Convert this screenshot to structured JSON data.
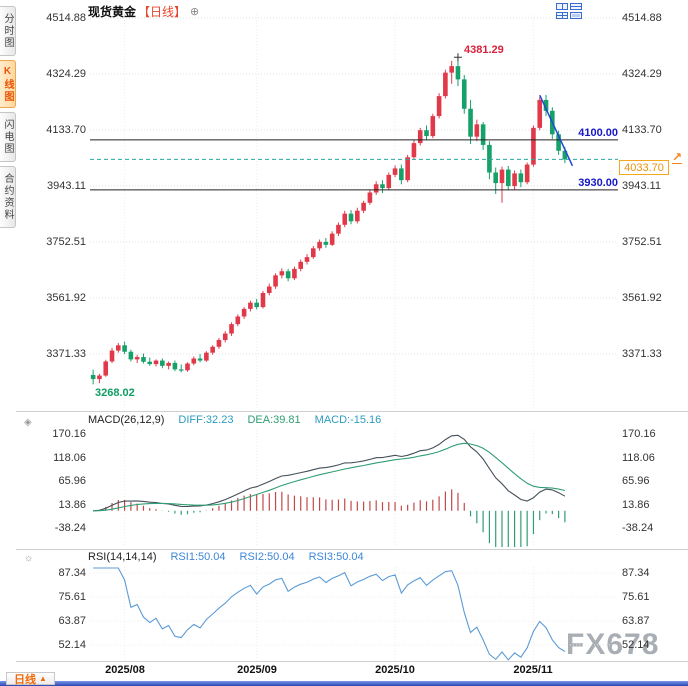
{
  "sidebar": {
    "items": [
      {
        "label": "分时图",
        "active": false
      },
      {
        "label": "K线图",
        "active": true
      },
      {
        "label": "闪电图",
        "active": false
      },
      {
        "label": "合约资料",
        "active": false
      }
    ]
  },
  "header": {
    "title": "现货黄金",
    "period_tag": "【日线】"
  },
  "icons": {
    "add": "⊕",
    "macd_settings": "◈",
    "rsi_settings": "☼",
    "jump_to_latest": "↗",
    "dropdown_arrow": "▲"
  },
  "footer": {
    "period_label": "日线"
  },
  "watermark": "FX678",
  "chart_data": [
    {
      "type": "candlestick",
      "title": "现货黄金【日线】",
      "y_ticks": [
        "4514.88",
        "4324.29",
        "4133.70",
        "3943.11",
        "3752.51",
        "3561.92",
        "3371.33"
      ],
      "x_labels": [
        {
          "label": "2025/08",
          "index": 5
        },
        {
          "label": "2025/09",
          "index": 26
        },
        {
          "label": "2025/10",
          "index": 48
        },
        {
          "label": "2025/11",
          "index": 70
        }
      ],
      "colors": {
        "up": "#e0394a",
        "down": "#16a06a",
        "grid": "#e2e2e2",
        "level_line": "#222222",
        "level_label": "#1518c8",
        "current_line": "#2aa7a0",
        "current_tag": "#f5a61f",
        "trendline": "#2247d0"
      },
      "annotations": {
        "peak_label": {
          "text": "4381.29",
          "index": 58,
          "price": 4381.29
        },
        "low_label": {
          "text": "3268.02",
          "index": 0,
          "price": 3268.02
        },
        "hlines": [
          {
            "text": "4100.00",
            "price": 4100.0
          },
          {
            "text": "3930.00",
            "price": 3930.0
          }
        ],
        "current": {
          "text": "4033.70",
          "price": 4033.7
        },
        "trendline": {
          "index1": 71,
          "price1": 4252,
          "index2": 76.2,
          "price2": 4012
        }
      },
      "candles": [
        [
          3300,
          3318,
          3268.02,
          3286
        ],
        [
          3286,
          3304,
          3272,
          3298
        ],
        [
          3298,
          3352,
          3294,
          3346
        ],
        [
          3346,
          3392,
          3341,
          3383
        ],
        [
          3383,
          3409,
          3376,
          3401
        ],
        [
          3401,
          3413,
          3371,
          3379
        ],
        [
          3379,
          3386,
          3346,
          3353
        ],
        [
          3353,
          3369,
          3341,
          3361
        ],
        [
          3361,
          3373,
          3339,
          3345
        ],
        [
          3345,
          3359,
          3331,
          3337
        ],
        [
          3337,
          3353,
          3329,
          3349
        ],
        [
          3349,
          3356,
          3323,
          3331
        ],
        [
          3331,
          3346,
          3319,
          3341
        ],
        [
          3341,
          3349,
          3313,
          3319
        ],
        [
          3319,
          3336,
          3309,
          3316
        ],
        [
          3316,
          3343,
          3311,
          3339
        ],
        [
          3339,
          3363,
          3333,
          3356
        ],
        [
          3356,
          3371,
          3343,
          3349
        ],
        [
          3349,
          3381,
          3345,
          3376
        ],
        [
          3376,
          3401,
          3369,
          3396
        ],
        [
          3396,
          3426,
          3389,
          3419
        ],
        [
          3419,
          3449,
          3411,
          3441
        ],
        [
          3441,
          3479,
          3433,
          3473
        ],
        [
          3473,
          3506,
          3466,
          3499
        ],
        [
          3499,
          3531,
          3491,
          3525
        ],
        [
          3525,
          3553,
          3516,
          3546
        ],
        [
          3546,
          3559,
          3523,
          3531
        ],
        [
          3531,
          3586,
          3526,
          3579
        ],
        [
          3579,
          3611,
          3571,
          3601
        ],
        [
          3601,
          3646,
          3593,
          3639
        ],
        [
          3639,
          3663,
          3629,
          3653
        ],
        [
          3653,
          3661,
          3619,
          3629
        ],
        [
          3629,
          3669,
          3623,
          3661
        ],
        [
          3661,
          3693,
          3653,
          3685
        ],
        [
          3685,
          3711,
          3676,
          3701
        ],
        [
          3701,
          3739,
          3695,
          3731
        ],
        [
          3731,
          3761,
          3723,
          3753
        ],
        [
          3753,
          3766,
          3733,
          3743
        ],
        [
          3743,
          3789,
          3739,
          3781
        ],
        [
          3781,
          3819,
          3773,
          3811
        ],
        [
          3811,
          3859,
          3803,
          3849
        ],
        [
          3849,
          3861,
          3813,
          3823
        ],
        [
          3823,
          3869,
          3816,
          3859
        ],
        [
          3859,
          3893,
          3851,
          3886
        ],
        [
          3886,
          3929,
          3879,
          3921
        ],
        [
          3921,
          3959,
          3913,
          3949
        ],
        [
          3949,
          3963,
          3919,
          3936
        ],
        [
          3936,
          3989,
          3929,
          3981
        ],
        [
          3981,
          4013,
          3973,
          4003
        ],
        [
          4003,
          4016,
          3949,
          3963
        ],
        [
          3963,
          4049,
          3956,
          4041
        ],
        [
          4041,
          4099,
          4033,
          4089
        ],
        [
          4089,
          4141,
          4081,
          4133
        ],
        [
          4133,
          4149,
          4099,
          4113
        ],
        [
          4113,
          4189,
          4106,
          4181
        ],
        [
          4181,
          4259,
          4173,
          4249
        ],
        [
          4249,
          4339,
          4241,
          4329
        ],
        [
          4329,
          4369,
          4291,
          4351
        ],
        [
          4351,
          4381.29,
          4283,
          4306
        ],
        [
          4306,
          4321,
          4189,
          4206
        ],
        [
          4206,
          4236,
          4086,
          4111
        ],
        [
          4111,
          4169,
          4096,
          4153
        ],
        [
          4153,
          4161,
          4066,
          4083
        ],
        [
          4083,
          4096,
          3966,
          3989
        ],
        [
          3989,
          4006,
          3916,
          3953
        ],
        [
          3953,
          4009,
          3886,
          3999
        ],
        [
          3999,
          4011,
          3929,
          3943
        ],
        [
          3943,
          3996,
          3931,
          3986
        ],
        [
          3986,
          3999,
          3939,
          3956
        ],
        [
          3956,
          4023,
          3949,
          4016
        ],
        [
          4016,
          4149,
          4009,
          4141
        ],
        [
          4141,
          4246,
          4133,
          4236
        ],
        [
          4236,
          4253,
          4181,
          4199
        ],
        [
          4199,
          4211,
          4103,
          4119
        ],
        [
          4119,
          4131,
          4049,
          4063
        ],
        [
          4063,
          4076,
          4021,
          4033.7
        ]
      ]
    },
    {
      "type": "macd-indicator",
      "params_label": "MACD(26,12,9)",
      "diff_label": "DIFF:32.23",
      "dea_label": "DEA:39.81",
      "macd_label": "MACD:-15.16",
      "diff_value": 32.23,
      "dea_value": 39.81,
      "macd_value": -15.16,
      "y_ticks": [
        "170.16",
        "118.06",
        "65.96",
        "13.86",
        "-38.24"
      ],
      "colors": {
        "diff_line": "#45505a",
        "dea_line": "#2f9e74",
        "hist_pos": "#c24848",
        "hist_neg": "#2f9e74",
        "diff_text": "#2a9bbf",
        "dea_text": "#2f9e74",
        "macd_text": "#2a9bbf"
      }
    },
    {
      "type": "rsi-indicator",
      "params_label": "RSI(14,14,14)",
      "rsi1_label": "RSI1:50.04",
      "rsi2_label": "RSI2:50.04",
      "rsi3_label": "RSI3:50.04",
      "rsi1_value": 50.04,
      "rsi2_value": 50.04,
      "rsi3_value": 50.04,
      "y_ticks": [
        "87.34",
        "75.61",
        "63.87",
        "52.14"
      ],
      "colors": {
        "line": "#5b9bd5",
        "text": "#3d86d8"
      }
    }
  ]
}
